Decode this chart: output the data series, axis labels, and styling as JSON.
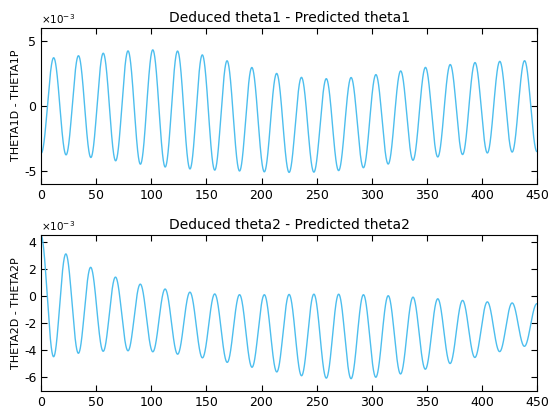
{
  "title1": "Deduced theta1 - Predicted theta1",
  "title2": "Deduced theta2 - Predicted theta2",
  "ylabel1": "THETA1D - THETA1P",
  "ylabel2": "THETA2D - THETA2P",
  "xlim": [
    0,
    450
  ],
  "line_color": "#4DBEEE",
  "line_width": 1.0,
  "xticks": [
    0,
    50,
    100,
    150,
    200,
    250,
    300,
    350,
    400,
    450
  ],
  "yticks1": [
    -0.005,
    0,
    0.005
  ],
  "yticks2": [
    -0.006,
    -0.004,
    -0.002,
    0,
    0.002,
    0.004
  ],
  "n_points": 5000,
  "bg_color": "white",
  "freq_cycles_total": 20,
  "title_fontsize": 10,
  "tick_fontsize": 9,
  "ylabel_fontsize": 8
}
